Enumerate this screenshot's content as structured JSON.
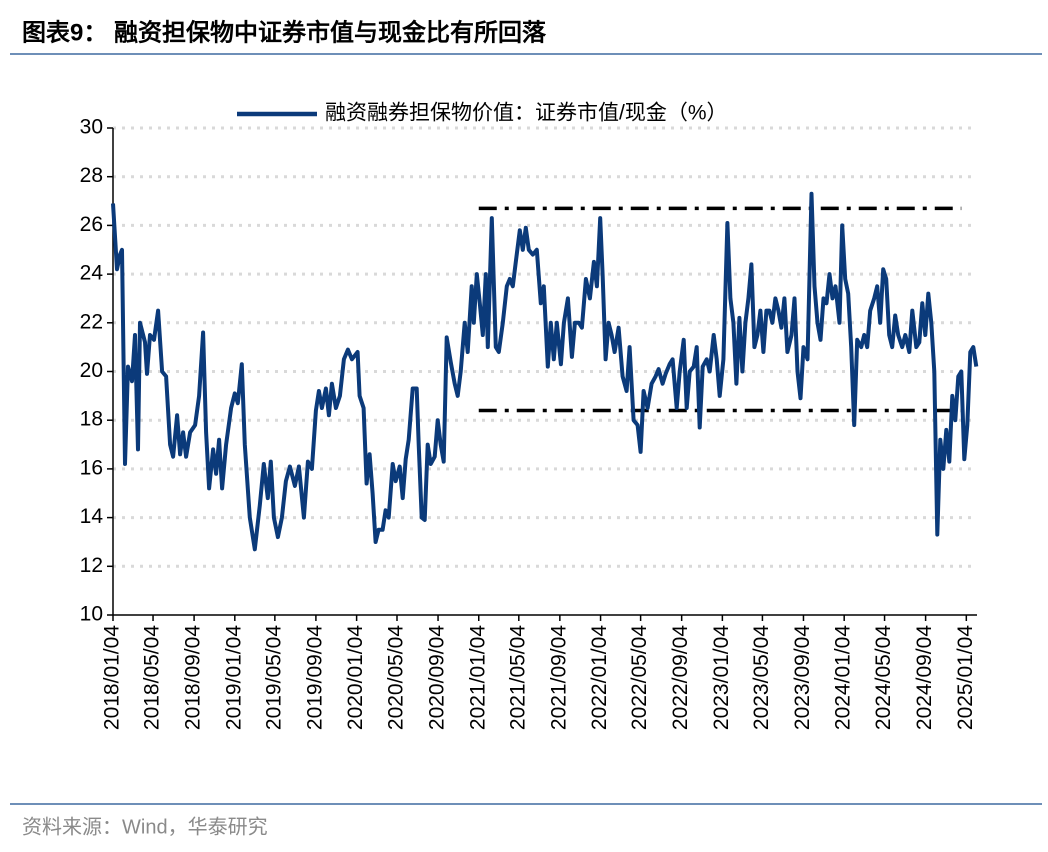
{
  "chart_data": {
    "type": "line",
    "title": "图表9：  融资担保物中证券市值与现金比有所回落",
    "source": "资料来源：Wind，华泰研究",
    "legend": "top",
    "grid": true,
    "x": [
      "2018/01/04",
      "2018/01/16",
      "2018/01/25",
      "2018/01/31",
      "2018/02/09",
      "2018/02/18",
      "2018/03/02",
      "2018/03/11",
      "2018/03/20",
      "2018/03/26",
      "2018/04/10",
      "2018/04/16",
      "2018/04/25",
      "2018/05/07",
      "2018/05/19",
      "2018/05/31",
      "2018/06/12",
      "2018/06/24",
      "2018/07/03",
      "2018/07/15",
      "2018/07/24",
      "2018/08/02",
      "2018/08/11",
      "2018/08/23",
      "2018/09/07",
      "2018/09/19",
      "2018/10/01",
      "2018/10/10",
      "2018/10/19",
      "2018/10/31",
      "2018/11/09",
      "2018/11/18",
      "2018/11/27",
      "2018/12/09",
      "2018/12/24",
      "2019/01/04",
      "2019/01/13",
      "2019/01/25",
      "2019/02/03",
      "2019/02/18",
      "2019/03/05",
      "2019/03/20",
      "2019/04/01",
      "2019/04/13",
      "2019/04/22",
      "2019/05/01",
      "2019/05/13",
      "2019/05/25",
      "2019/06/06",
      "2019/06/18",
      "2019/07/03",
      "2019/07/15",
      "2019/07/30",
      "2019/08/11",
      "2019/08/23",
      "2019/09/04",
      "2019/09/13",
      "2019/09/22",
      "2019/10/04",
      "2019/10/13",
      "2019/10/22",
      "2019/11/03",
      "2019/11/15",
      "2019/11/27",
      "2019/12/09",
      "2019/12/21",
      "2020/01/07",
      "2020/01/13",
      "2020/01/25",
      "2020/02/03",
      "2020/02/12",
      "2020/02/21",
      "2020/03/01",
      "2020/03/10",
      "2020/03/22",
      "2020/03/31",
      "2020/04/09",
      "2020/04/21",
      "2020/04/30",
      "2020/05/12",
      "2020/05/21",
      "2020/05/30",
      "2020/06/08",
      "2020/06/20",
      "2020/07/02",
      "2020/07/08",
      "2020/07/17",
      "2020/07/26",
      "2020/08/04",
      "2020/08/13",
      "2020/08/25",
      "2020/09/03",
      "2020/09/12",
      "2020/09/21",
      "2020/09/30",
      "2020/10/12",
      "2020/10/24",
      "2020/11/02",
      "2020/11/11",
      "2020/11/23",
      "2020/12/02",
      "2020/12/14",
      "2020/12/20",
      "2020/12/29",
      "2021/01/07",
      "2021/01/16",
      "2021/01/25",
      "2021/01/31",
      "2021/02/12",
      "2021/02/24",
      "2021/03/05",
      "2021/03/17",
      "2021/03/29",
      "2021/04/07",
      "2021/04/16",
      "2021/04/25",
      "2021/05/07",
      "2021/05/16",
      "2021/05/25",
      "2021/06/03",
      "2021/06/15",
      "2021/06/27",
      "2021/07/09",
      "2021/07/18",
      "2021/07/30",
      "2021/08/08",
      "2021/08/17",
      "2021/08/26",
      "2021/09/07",
      "2021/09/16",
      "2021/09/28",
      "2021/10/10",
      "2021/10/19",
      "2021/10/31",
      "2021/11/09",
      "2021/11/21",
      "2021/12/03",
      "2021/12/15",
      "2021/12/24",
      "2022/01/03",
      "2022/01/10",
      "2022/01/19",
      "2022/01/28",
      "2022/02/06",
      "2022/02/15",
      "2022/02/27",
      "2022/03/11",
      "2022/03/23",
      "2022/04/01",
      "2022/04/13",
      "2022/04/25",
      "2022/05/04",
      "2022/05/13",
      "2022/05/25",
      "2022/06/06",
      "2022/06/18",
      "2022/06/27",
      "2022/07/09",
      "2022/07/18",
      "2022/07/30",
      "2022/08/08",
      "2022/08/20",
      "2022/08/29",
      "2022/09/10",
      "2022/09/19",
      "2022/09/28",
      "2022/10/10",
      "2022/10/19",
      "2022/10/28",
      "2022/11/06",
      "2022/11/18",
      "2022/11/27",
      "2022/12/09",
      "2022/12/18",
      "2022/12/27",
      "2023/01/07",
      "2023/01/19",
      "2023/01/28",
      "2023/02/06",
      "2023/02/15",
      "2023/02/24",
      "2023/03/05",
      "2023/03/14",
      "2023/03/23",
      "2023/04/01",
      "2023/04/10",
      "2023/04/19",
      "2023/04/28",
      "2023/05/07",
      "2023/05/16",
      "2023/05/25",
      "2023/06/03",
      "2023/06/12",
      "2023/06/21",
      "2023/06/30",
      "2023/07/09",
      "2023/07/18",
      "2023/07/30",
      "2023/08/08",
      "2023/08/17",
      "2023/08/26",
      "2023/09/04",
      "2023/09/16",
      "2023/09/28",
      "2023/10/07",
      "2023/10/16",
      "2023/10/25",
      "2023/11/03",
      "2023/11/12",
      "2023/11/21",
      "2023/11/30",
      "2023/12/09",
      "2023/12/21",
      "2023/12/29",
      "2024/01/07",
      "2024/01/16",
      "2024/01/25",
      "2024/02/03",
      "2024/02/12",
      "2024/02/24",
      "2024/03/04",
      "2024/03/13",
      "2024/03/22",
      "2024/04/03",
      "2024/04/12",
      "2024/04/21",
      "2024/04/30",
      "2024/05/09",
      "2024/05/18",
      "2024/05/27",
      "2024/06/05",
      "2024/06/14",
      "2024/06/26",
      "2024/07/05",
      "2024/07/17",
      "2024/07/26",
      "2024/08/07",
      "2024/08/16",
      "2024/08/25",
      "2024/09/03",
      "2024/09/12",
      "2024/09/21",
      "2024/09/30",
      "2024/10/09",
      "2024/10/18",
      "2024/10/27",
      "2024/11/05",
      "2024/11/14",
      "2024/11/23",
      "2024/12/02",
      "2024/12/11",
      "2024/12/20",
      "2024/12/29",
      "2025/01/07",
      "2025/01/16",
      "2025/01/25",
      "2025/02/03"
    ],
    "series": [
      {
        "name": "融资融券担保物价值：证券市值/现金（%）",
        "color": "#0b3a7a",
        "values": [
          26.9,
          24.2,
          24.8,
          25.0,
          16.2,
          20.2,
          19.6,
          21.5,
          16.8,
          22.0,
          21.2,
          19.9,
          21.5,
          21.3,
          22.5,
          20.0,
          19.8,
          17.0,
          16.5,
          18.2,
          16.6,
          17.5,
          16.5,
          17.5,
          17.8,
          19.0,
          21.6,
          17.5,
          15.2,
          16.8,
          15.8,
          17.2,
          15.2,
          17.0,
          18.5,
          19.1,
          18.7,
          20.3,
          17.0,
          14.0,
          12.7,
          14.5,
          16.2,
          14.8,
          16.3,
          14.0,
          13.2,
          14.0,
          15.5,
          16.1,
          15.3,
          16.1,
          14.0,
          16.3,
          16.0,
          18.4,
          19.2,
          18.5,
          19.3,
          18.2,
          19.5,
          18.5,
          19.0,
          20.5,
          20.9,
          20.5,
          20.8,
          19.0,
          18.5,
          15.4,
          16.6,
          15.0,
          13.0,
          13.5,
          13.5,
          14.3,
          14.0,
          16.2,
          15.5,
          16.1,
          14.8,
          16.4,
          17.2,
          19.3,
          19.3,
          17.0,
          14.0,
          13.9,
          17.0,
          16.2,
          16.5,
          18.0,
          17.0,
          16.3,
          21.4,
          20.4,
          19.5,
          19.0,
          20.0,
          22.0,
          20.8,
          23.5,
          22.0,
          24.0,
          22.8,
          21.5,
          24.0,
          21.0,
          26.3,
          21.0,
          20.8,
          22.0,
          23.5,
          23.8,
          23.5,
          24.5,
          25.8,
          25.0,
          25.9,
          25.0,
          24.8,
          25.0,
          22.8,
          23.5,
          20.2,
          22.0,
          20.5,
          22.0,
          20.3,
          22.0,
          23.0,
          20.6,
          22.0,
          22.0,
          21.8,
          23.8,
          23.0,
          24.5,
          23.5,
          26.3,
          24.0,
          20.5,
          22.0,
          21.5,
          20.8,
          21.8,
          19.8,
          19.2,
          21.0,
          18.0,
          17.8,
          16.7,
          19.2,
          18.5,
          19.5,
          19.8,
          20.1,
          19.5,
          19.9,
          20.3,
          20.5,
          18.5,
          20.0,
          21.3,
          18.5,
          20.0,
          20.2,
          21.0,
          17.7,
          20.2,
          20.5,
          20.0,
          21.5,
          20.5,
          19.0,
          20.5,
          26.1,
          23.0,
          22.0,
          19.5,
          22.2,
          20.0,
          22.0,
          23.0,
          24.4,
          21.0,
          21.5,
          22.5,
          20.8,
          22.5,
          22.5,
          22.0,
          23.0,
          22.5,
          21.8,
          23.0,
          20.8,
          21.5,
          23.0,
          20.0,
          18.9,
          21.0,
          20.5,
          27.3,
          23.5,
          22.0,
          21.3,
          23.0,
          22.8,
          24.0,
          23.0,
          23.5,
          22.0,
          26.0,
          23.8,
          23.2,
          21.0,
          17.8,
          21.3,
          21.0,
          21.5,
          21.0,
          22.5,
          23.0,
          23.5,
          22.0,
          24.2,
          23.8,
          21.5,
          21.0,
          22.3,
          21.5,
          21.0,
          21.5,
          20.8,
          22.5,
          21.0,
          21.2,
          22.8,
          21.5,
          23.2,
          22.0,
          20.0,
          13.3,
          17.2,
          16.0,
          17.6,
          16.3,
          19.0,
          18.0,
          19.8,
          20.0,
          16.4,
          17.8,
          20.8,
          21.0,
          20.2
        ]
      }
    ],
    "xlim": [
      "2018/01/04",
      "2025/02/05"
    ],
    "xticks": [
      "2018/01/04",
      "2018/05/04",
      "2018/09/04",
      "2019/01/04",
      "2019/05/04",
      "2019/09/04",
      "2020/01/04",
      "2020/05/04",
      "2020/09/04",
      "2021/01/04",
      "2021/05/04",
      "2021/09/04",
      "2022/01/04",
      "2022/05/04",
      "2022/09/04",
      "2023/01/04",
      "2023/05/04",
      "2023/09/04",
      "2024/01/04",
      "2024/05/04",
      "2024/09/04",
      "2025/01/04"
    ],
    "ylim": [
      10,
      30
    ],
    "yticks": [
      10,
      12,
      14,
      16,
      18,
      20,
      22,
      24,
      26,
      28,
      30
    ],
    "reference_lines": [
      {
        "y": 26.7,
        "x": [
          "2021/01/04",
          "2024/12/20"
        ],
        "style": "dash-dot",
        "color": "#000000"
      },
      {
        "y": 18.4,
        "x": [
          "2021/01/04",
          "2024/12/20"
        ],
        "style": "dash-dot",
        "color": "#000000"
      }
    ]
  }
}
